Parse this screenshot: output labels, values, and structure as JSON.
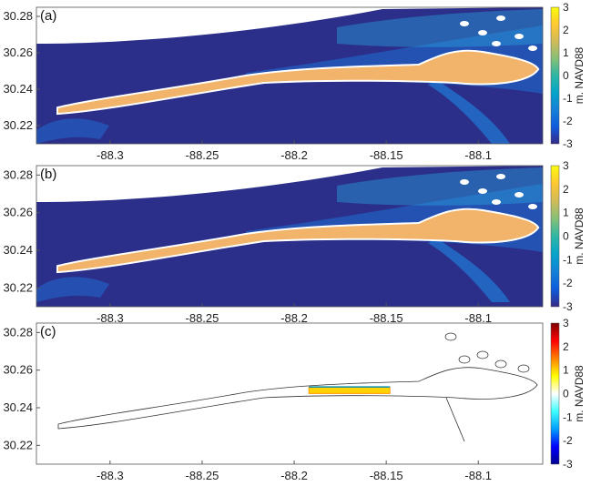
{
  "chart_data": [
    {
      "type": "heatmap",
      "panel_label": "(a)",
      "x_ticks": [
        -88.3,
        -88.25,
        -88.2,
        -88.15,
        -88.1
      ],
      "x_tick_labels": [
        "-88.3",
        "-88.25",
        "-88.2",
        "-88.15",
        "-88.1"
      ],
      "y_ticks": [
        30.22,
        30.24,
        30.26,
        30.28
      ],
      "y_tick_labels": [
        "30.22",
        "30.24",
        "30.26",
        "30.28"
      ],
      "xlim": [
        -88.34,
        -88.065
      ],
      "ylim": [
        30.21,
        30.285
      ],
      "colorbar": {
        "label": "m. NAVD88",
        "range": [
          -3,
          3
        ],
        "ticks": [
          "3",
          "2",
          "1",
          "0",
          "-1",
          "-2",
          "-3"
        ],
        "colormap": "parula-like",
        "colors": [
          "#352a87",
          "#0f5cdd",
          "#1481d6",
          "#06a4ca",
          "#2eb7a4",
          "#87bf77",
          "#d1bb59",
          "#fec832",
          "#f9fb0e"
        ]
      },
      "background_color": "#2b2f8a",
      "island_color": "#f2b36b"
    },
    {
      "type": "heatmap",
      "panel_label": "(b)",
      "x_ticks": [
        -88.3,
        -88.25,
        -88.2,
        -88.15,
        -88.1
      ],
      "x_tick_labels": [
        "-88.3",
        "-88.25",
        "-88.2",
        "-88.15",
        "-88.1"
      ],
      "y_ticks": [
        30.22,
        30.24,
        30.26,
        30.28
      ],
      "y_tick_labels": [
        "30.22",
        "30.24",
        "30.26",
        "30.28"
      ],
      "xlim": [
        -88.34,
        -88.065
      ],
      "ylim": [
        30.21,
        30.285
      ],
      "colorbar": {
        "label": "m. NAVD88",
        "range": [
          -3,
          3
        ],
        "ticks": [
          "3",
          "2",
          "1",
          "0",
          "-1",
          "-2",
          "-3"
        ],
        "colormap": "parula-like",
        "colors": [
          "#352a87",
          "#0f5cdd",
          "#1481d6",
          "#06a4ca",
          "#2eb7a4",
          "#87bf77",
          "#d1bb59",
          "#fec832",
          "#f9fb0e"
        ]
      },
      "background_color": "#2b2f8a",
      "island_color": "#f2b36b"
    },
    {
      "type": "heatmap",
      "panel_label": "(c)",
      "x_ticks": [
        -88.3,
        -88.25,
        -88.2,
        -88.15,
        -88.1
      ],
      "x_tick_labels": [
        "-88.3",
        "-88.25",
        "-88.2",
        "-88.15",
        "-88.1"
      ],
      "y_ticks": [
        30.22,
        30.24,
        30.26,
        30.28
      ],
      "y_tick_labels": [
        "30.22",
        "30.24",
        "30.26",
        "30.28"
      ],
      "xlim": [
        -88.34,
        -88.065
      ],
      "ylim": [
        30.21,
        30.285
      ],
      "colorbar": {
        "label": "m. NAVD88",
        "range": [
          -3,
          3
        ],
        "ticks": [
          "3",
          "2",
          "1",
          "0",
          "-1",
          "-2",
          "-3"
        ],
        "colormap": "jet-like",
        "colors": [
          "#00008f",
          "#0000ff",
          "#00a0ff",
          "#40ffff",
          "#ffffff",
          "#ffff00",
          "#ff8000",
          "#ff0000",
          "#800000"
        ]
      },
      "background_color": "#ffffff",
      "difference_band": {
        "x_range": [
          -88.192,
          -88.148
        ],
        "y": 30.249,
        "value": 2.5
      }
    }
  ]
}
